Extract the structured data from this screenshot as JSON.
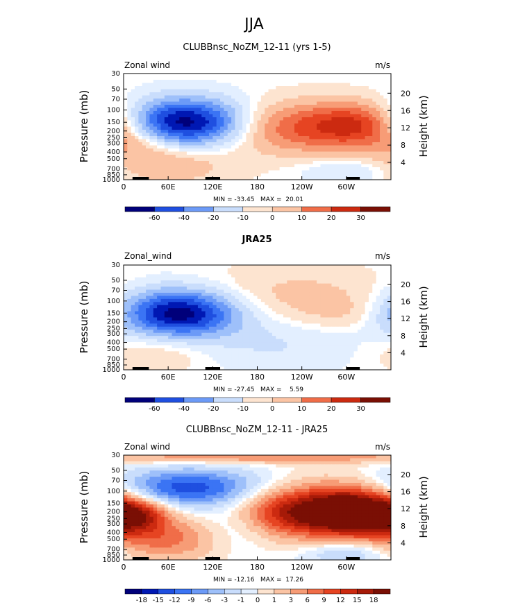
{
  "figure_title": "JJA",
  "chart_data": [
    {
      "type": "heatmap",
      "title": "CLUBBnsc_NoZM_12-11 (yrs 1-5)",
      "left_label": "Zonal wind",
      "right_label": "m/s",
      "ylabel": "Pressure (mb)",
      "ylabel_right": "Height (km)",
      "pressure_ticks": [
        "30",
        "50",
        "70",
        "100",
        "150",
        "200",
        "250",
        "300",
        "400",
        "500",
        "700",
        "850",
        "1000"
      ],
      "height_ticks": [
        "20",
        "16",
        "12",
        "8",
        "4"
      ],
      "lon_ticks": [
        "0",
        "60E",
        "120E",
        "180",
        "120W",
        "60W"
      ],
      "stats": "MIN = -33.45   MAX =  20.01",
      "colorbar_labels": [
        "-60",
        "-40",
        "-20",
        "-10",
        "0",
        "10",
        "20",
        "30"
      ],
      "blobs": [
        {
          "lon": 85,
          "p": 150,
          "rx": 55,
          "ry": 0.55,
          "amp": -33
        },
        {
          "lon": 245,
          "p": 180,
          "rx": 70,
          "ry": 0.6,
          "amp": 18
        },
        {
          "lon": 320,
          "p": 160,
          "rx": 40,
          "ry": 0.5,
          "amp": 14
        },
        {
          "lon": 60,
          "p": 600,
          "rx": 60,
          "ry": 0.5,
          "amp": 8
        },
        {
          "lon": 20,
          "p": 300,
          "rx": 35,
          "ry": 0.4,
          "amp": 6
        },
        {
          "lon": 300,
          "p": 750,
          "rx": 40,
          "ry": 0.3,
          "amp": -6
        }
      ]
    },
    {
      "type": "heatmap",
      "title": "JRA25",
      "left_label": "Zonal_wind",
      "right_label": "m/s",
      "ylabel": "Pressure (mb)",
      "ylabel_right": "Height (km)",
      "pressure_ticks": [
        "30",
        "50",
        "70",
        "100",
        "150",
        "200",
        "250",
        "300",
        "400",
        "500",
        "700",
        "850",
        "1000"
      ],
      "height_ticks": [
        "20",
        "16",
        "12",
        "8",
        "4"
      ],
      "lon_ticks": [
        "0",
        "60E",
        "120E",
        "180",
        "120W",
        "60W"
      ],
      "stats": "MIN = -27.45   MAX =    5.59",
      "colorbar_labels": [
        "-60",
        "-40",
        "-20",
        "-10",
        "0",
        "10",
        "20",
        "30"
      ],
      "blobs": [
        {
          "lon": 75,
          "p": 150,
          "rx": 55,
          "ry": 0.55,
          "amp": -27
        },
        {
          "lon": 230,
          "p": 90,
          "rx": 90,
          "ry": 0.7,
          "amp": 5
        },
        {
          "lon": 300,
          "p": 150,
          "rx": 40,
          "ry": 0.4,
          "amp": 3
        },
        {
          "lon": 50,
          "p": 550,
          "rx": 55,
          "ry": 0.5,
          "amp": 4
        },
        {
          "lon": 200,
          "p": 400,
          "rx": 90,
          "ry": 0.7,
          "amp": -4
        }
      ]
    },
    {
      "type": "heatmap",
      "title": "CLUBBnsc_NoZM_12-11 - JRA25",
      "left_label": "Zonal wind",
      "right_label": "m/s",
      "ylabel": "Pressure (mb)",
      "ylabel_right": "Height (km)",
      "pressure_ticks": [
        "30",
        "50",
        "70",
        "100",
        "150",
        "200",
        "250",
        "300",
        "400",
        "500",
        "700",
        "850",
        "1000"
      ],
      "height_ticks": [
        "20",
        "16",
        "12",
        "8",
        "4"
      ],
      "lon_ticks": [
        "0",
        "60E",
        "120E",
        "180",
        "120W",
        "60W"
      ],
      "stats": "MIN = -12.16   MAX =  17.26",
      "colorbar_labels": [
        "-18",
        "-15",
        "-12",
        "-9",
        "-6",
        "-3",
        "-1",
        "0",
        "1",
        "3",
        "6",
        "9",
        "12",
        "15",
        "18"
      ],
      "blobs": [
        {
          "lon": 90,
          "p": 90,
          "rx": 70,
          "ry": 0.45,
          "amp": -12
        },
        {
          "lon": 245,
          "p": 200,
          "rx": 70,
          "ry": 0.6,
          "amp": 16
        },
        {
          "lon": 320,
          "p": 200,
          "rx": 40,
          "ry": 0.55,
          "amp": 14
        },
        {
          "lon": 20,
          "p": 220,
          "rx": 30,
          "ry": 0.4,
          "amp": 10
        },
        {
          "lon": 60,
          "p": 500,
          "rx": 55,
          "ry": 0.5,
          "amp": 7
        },
        {
          "lon": 180,
          "p": 32,
          "rx": 200,
          "ry": 0.15,
          "amp": 6
        },
        {
          "lon": 150,
          "p": 300,
          "rx": 40,
          "ry": 0.6,
          "amp": -5
        },
        {
          "lon": 300,
          "p": 800,
          "rx": 40,
          "ry": 0.3,
          "amp": -5
        }
      ]
    }
  ],
  "colors": {
    "neg": [
      "#00007a",
      "#0018b3",
      "#1f4fe0",
      "#3b74f4",
      "#6c9af7",
      "#9ec0fa",
      "#c9ddfc",
      "#e3efff"
    ],
    "pos": [
      "#fde4d0",
      "#fbc4a4",
      "#f79c76",
      "#f06d48",
      "#e64422",
      "#cc2a10",
      "#a61a08",
      "#7a0f04"
    ]
  }
}
